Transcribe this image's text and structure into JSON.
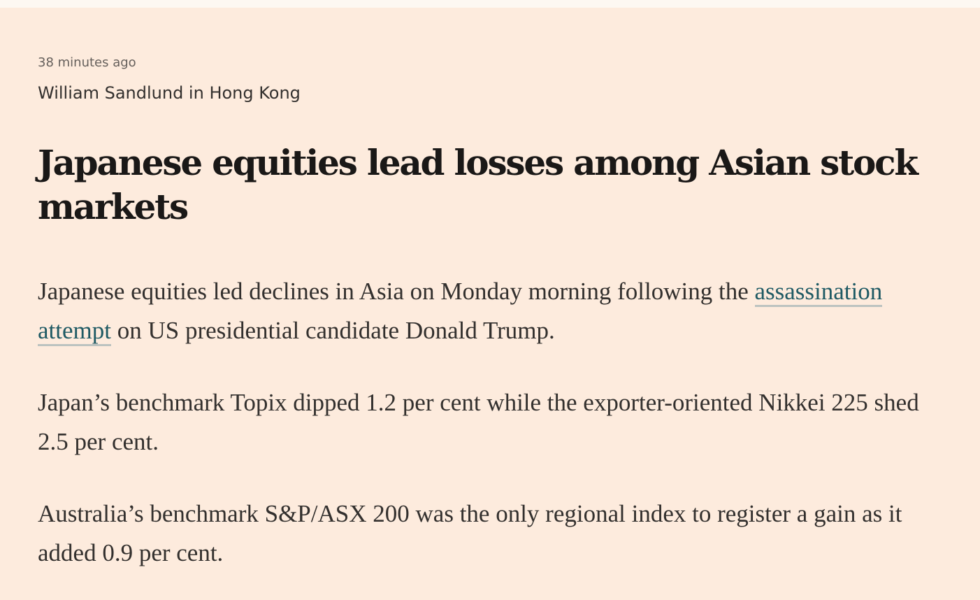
{
  "article": {
    "timestamp": "38 minutes ago",
    "byline": "William Sandlund in Hong Kong",
    "headline": "Japanese equities lead losses among Asian stock markets",
    "paragraphs": [
      {
        "before": "Japanese equities led declines in Asia on Monday morning following the ",
        "link": "assassination attempt",
        "after": " on US presidential candidate Donald Trump."
      },
      {
        "text": "Japan’s benchmark Topix dipped 1.2 per cent while the exporter-oriented Nikkei 225 shed 2.5 per cent."
      },
      {
        "text": "Australia’s benchmark S&P/ASX 200 was the only regional index to register a gain as it added 0.9 per cent."
      }
    ]
  },
  "colors": {
    "background": "#fdebdd",
    "link": "#1f5a64",
    "text": "#33302e"
  }
}
